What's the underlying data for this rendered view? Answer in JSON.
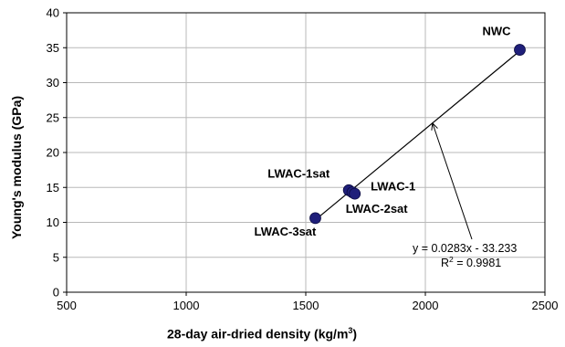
{
  "chart_data": {
    "type": "scatter",
    "xlabel_main": "28-day air-dried density (kg/m",
    "xlabel_sup": "3",
    "xlabel_end": ")",
    "ylabel": "Young's modulus (GPa)",
    "xlim": [
      500,
      2500
    ],
    "ylim": [
      0,
      40
    ],
    "xticks": [
      500,
      1000,
      1500,
      2000,
      2500
    ],
    "yticks": [
      0,
      5,
      10,
      15,
      20,
      25,
      30,
      35,
      40
    ],
    "xtick_labels": [
      "500",
      "1000",
      "1500",
      "2000",
      "2500"
    ],
    "ytick_labels": [
      "0",
      "5",
      "10",
      "15",
      "20",
      "25",
      "30",
      "35",
      "40"
    ],
    "grid": true,
    "marker_color": "#1f1f7a",
    "points": [
      {
        "label": "NWC",
        "x": 2395,
        "y": 34.7
      },
      {
        "label": "LWAC-1sat",
        "x": 1680,
        "y": 14.6
      },
      {
        "label": "LWAC-1",
        "x": 1695,
        "y": 14.3
      },
      {
        "label": "LWAC-2sat",
        "x": 1705,
        "y": 14.1
      },
      {
        "label": "LWAC-3sat",
        "x": 1540,
        "y": 10.6
      }
    ],
    "trendline": {
      "slope": 0.0283,
      "intercept": -33.233,
      "x_range": [
        1540,
        2395
      ]
    },
    "annotation": {
      "equation": "y = 0.0283x - 33.233",
      "r2_prefix": "R",
      "r2_sup": "2",
      "r2_value": " = 0.9981",
      "arrow_to": {
        "x": 2030,
        "y": 24.2
      }
    }
  }
}
